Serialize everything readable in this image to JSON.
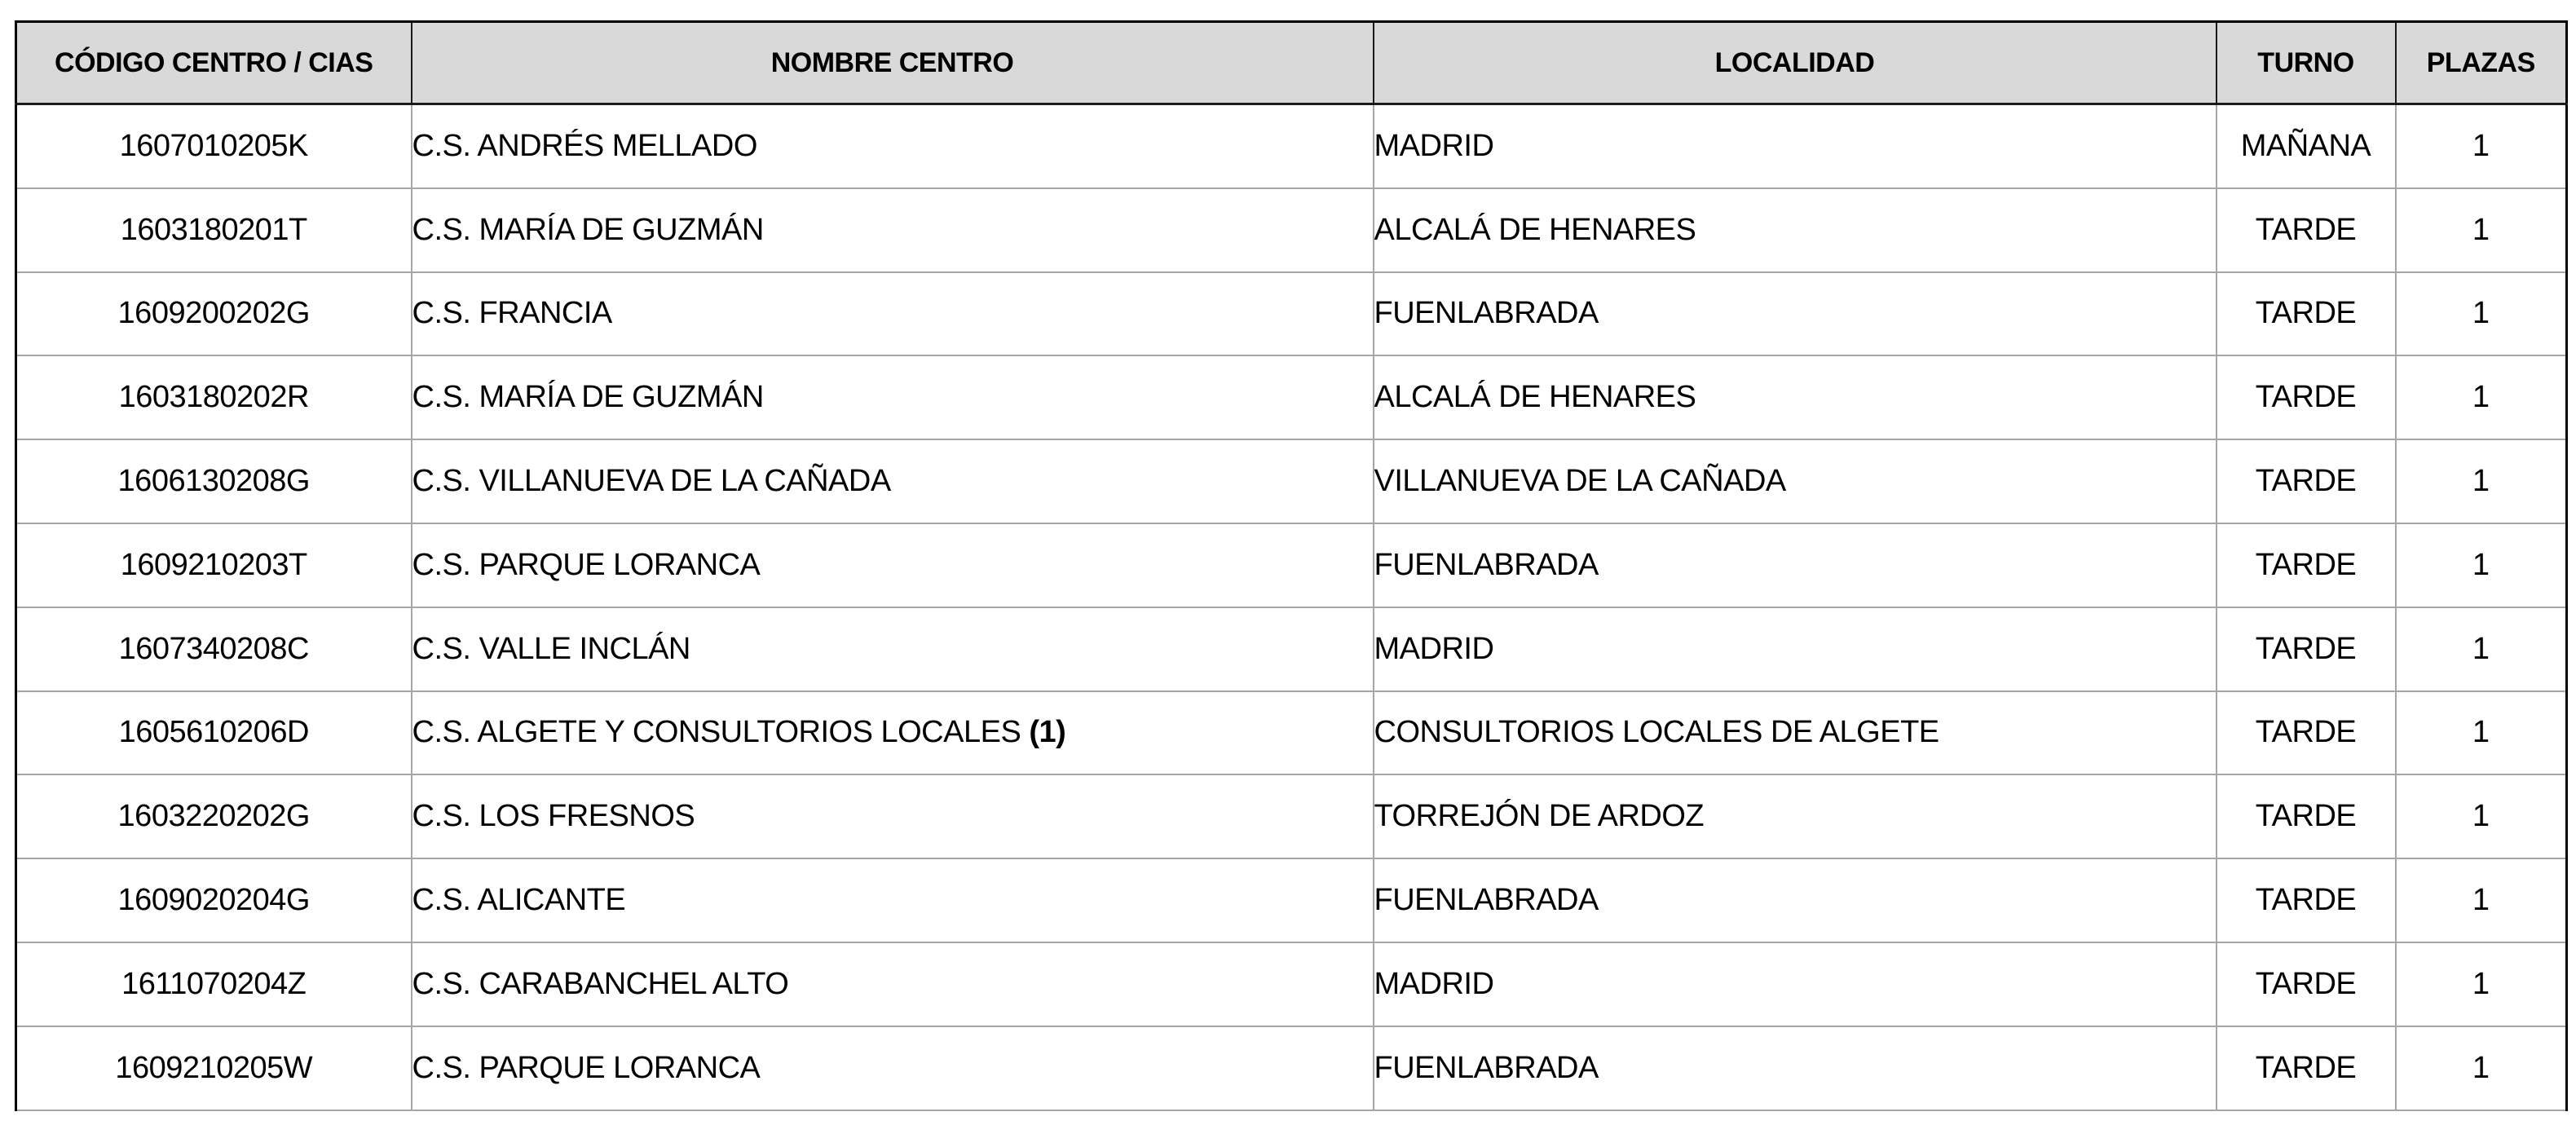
{
  "table": {
    "colors": {
      "header_bg": "#d9d9d9",
      "outer_border": "#000000",
      "header_line": "#1a1a1a",
      "grid_line": "#a6a6a6",
      "text": "#000000"
    },
    "columns": [
      {
        "key": "code",
        "label": "CÓDIGO CENTRO / CIAS"
      },
      {
        "key": "name",
        "label": "NOMBRE CENTRO"
      },
      {
        "key": "locality",
        "label": "LOCALIDAD"
      },
      {
        "key": "shift",
        "label": "TURNO"
      },
      {
        "key": "plazas",
        "label": "PLAZAS"
      }
    ],
    "rows": [
      {
        "code": "1607010205K",
        "name": "C.S. ANDRÉS MELLADO",
        "locality": "MADRID",
        "shift": "MAÑANA",
        "plazas": "1"
      },
      {
        "code": "1603180201T",
        "name": "C.S. MARÍA DE GUZMÁN",
        "locality": "ALCALÁ DE HENARES",
        "shift": "TARDE",
        "plazas": "1"
      },
      {
        "code": "1609200202G",
        "name": "C.S. FRANCIA",
        "locality": "FUENLABRADA",
        "shift": "TARDE",
        "plazas": "1"
      },
      {
        "code": "1603180202R",
        "name": "C.S. MARÍA DE GUZMÁN",
        "locality": "ALCALÁ DE HENARES",
        "shift": "TARDE",
        "plazas": "1"
      },
      {
        "code": "1606130208G",
        "name": "C.S. VILLANUEVA DE LA CAÑADA",
        "locality": "VILLANUEVA DE LA CAÑADA",
        "shift": "TARDE",
        "plazas": "1"
      },
      {
        "code": "1609210203T",
        "name": "C.S. PARQUE LORANCA",
        "locality": "FUENLABRADA",
        "shift": "TARDE",
        "plazas": "1"
      },
      {
        "code": "1607340208C",
        "name": "C.S. VALLE INCLÁN",
        "locality": "MADRID",
        "shift": "TARDE",
        "plazas": "1"
      },
      {
        "code": "1605610206D",
        "name": "C.S. ALGETE Y CONSULTORIOS LOCALES",
        "name_bold_suffix": "(1)",
        "locality": "CONSULTORIOS LOCALES DE ALGETE",
        "shift": "TARDE",
        "plazas": "1"
      },
      {
        "code": "1603220202G",
        "name": "C.S. LOS FRESNOS",
        "locality": "TORREJÓN DE ARDOZ",
        "shift": "TARDE",
        "plazas": "1"
      },
      {
        "code": "1609020204G",
        "name": "C.S. ALICANTE",
        "locality": "FUENLABRADA",
        "shift": "TARDE",
        "plazas": "1"
      },
      {
        "code": "1611070204Z",
        "name": "C.S. CARABANCHEL ALTO",
        "locality": "MADRID",
        "shift": "TARDE",
        "plazas": "1"
      },
      {
        "code": "1609210205W",
        "name": "C.S. PARQUE LORANCA",
        "locality": "FUENLABRADA",
        "shift": "TARDE",
        "plazas": "1"
      }
    ]
  }
}
